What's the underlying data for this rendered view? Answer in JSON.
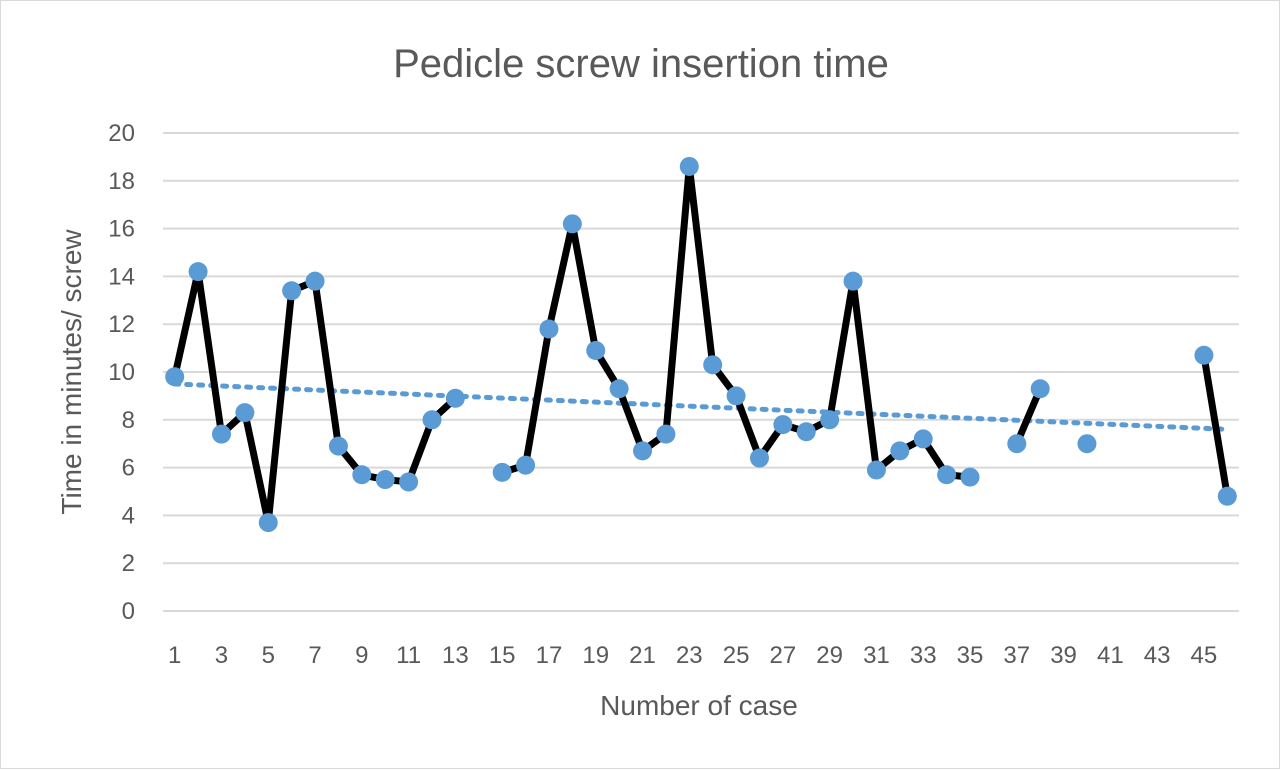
{
  "chart_data": {
    "type": "line",
    "title": "Pedicle screw insertion time",
    "xlabel": "Number of case",
    "ylabel": "Time in minutes/ screw",
    "ylim": [
      0,
      20
    ],
    "yticks": [
      0,
      2,
      4,
      6,
      8,
      10,
      12,
      14,
      16,
      18,
      20
    ],
    "xticks": [
      "1",
      "3",
      "5",
      "7",
      "9",
      "11",
      "13",
      "15",
      "17",
      "19",
      "21",
      "23",
      "25",
      "27",
      "29",
      "31",
      "33",
      "35",
      "37",
      "39",
      "41",
      "43",
      "45"
    ],
    "x_categories_count": 46,
    "grid": true,
    "legend": "none",
    "series": [
      {
        "values": [
          9.8,
          14.2,
          7.4,
          8.3,
          3.7,
          13.4,
          13.8,
          6.9,
          5.7,
          5.5,
          5.4,
          8.0,
          8.9,
          null,
          5.8,
          6.1,
          11.8,
          16.2,
          10.9,
          9.3,
          6.7,
          7.4,
          18.6,
          10.3,
          9.0,
          6.4,
          7.8,
          7.5,
          8.0,
          13.8,
          5.9,
          6.7,
          7.2,
          5.7,
          5.6,
          null,
          7.0,
          9.3,
          null,
          7.0,
          null,
          null,
          null,
          null,
          10.7,
          4.8
        ],
        "line_color": "#000000",
        "marker_color": "#5b9bd5"
      }
    ],
    "trendline": {
      "type": "linear",
      "style": "dotted",
      "color": "#5b9bd5",
      "start": 9.5,
      "end": 7.6
    }
  }
}
